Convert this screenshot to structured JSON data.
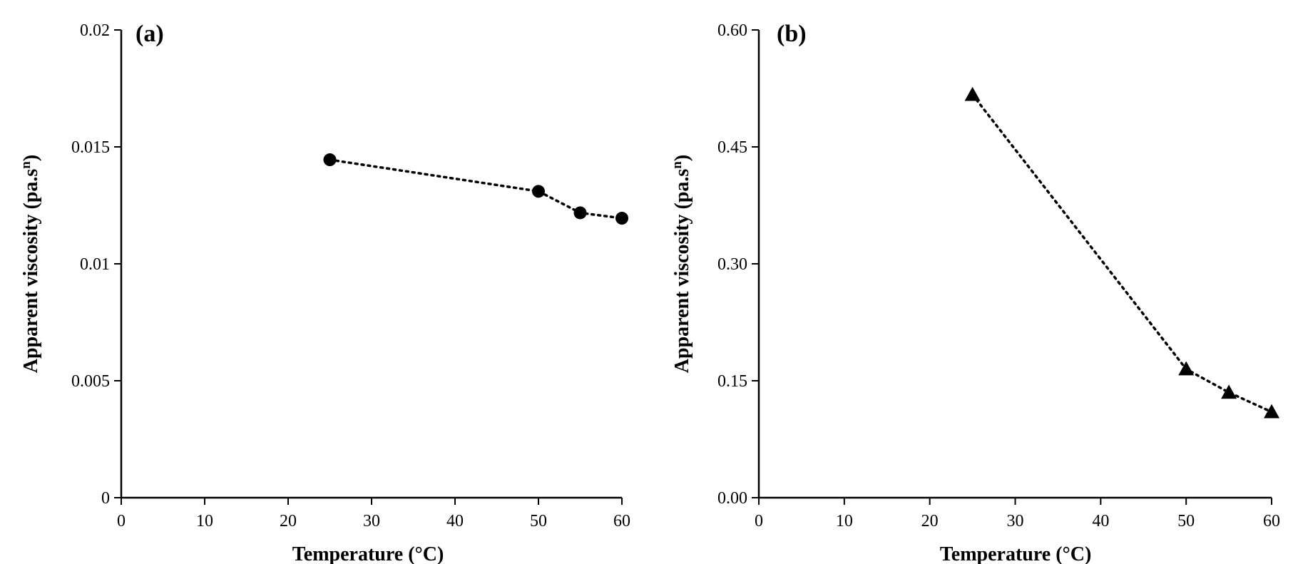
{
  "chart_data": [
    {
      "type": "line",
      "panel_label": "(a)",
      "xlabel": "Temperature (°C)",
      "ylabel_main": "Apparent viscosity (pa.s",
      "ylabel_sup": "n",
      "ylabel_close": ")",
      "xlim": [
        0,
        60
      ],
      "ylim": [
        0,
        0.02
      ],
      "xticks": [
        "0",
        "10",
        "20",
        "30",
        "40",
        "50",
        "60"
      ],
      "yticks": [
        "0",
        "0.005",
        "0.01",
        "0.015",
        "0.02"
      ],
      "marker": "circle",
      "series": [
        {
          "x": [
            25,
            50,
            55,
            60
          ],
          "values": [
            0.01445,
            0.0131,
            0.01218,
            0.01195
          ]
        }
      ]
    },
    {
      "type": "line",
      "panel_label": "(b)",
      "xlabel": "Temperature (°C)",
      "ylabel_main": "Apparent viscosity (pa.s",
      "ylabel_sup": "n",
      "ylabel_close": ")",
      "xlim": [
        0,
        60
      ],
      "ylim": [
        0,
        0.6
      ],
      "xticks": [
        "0",
        "10",
        "20",
        "30",
        "40",
        "50",
        "60"
      ],
      "yticks": [
        "0.00",
        "0.15",
        "0.30",
        "0.45",
        "0.60"
      ],
      "marker": "triangle",
      "series": [
        {
          "x": [
            25,
            50,
            55,
            60
          ],
          "values": [
            0.517,
            0.165,
            0.135,
            0.11
          ]
        }
      ]
    }
  ]
}
